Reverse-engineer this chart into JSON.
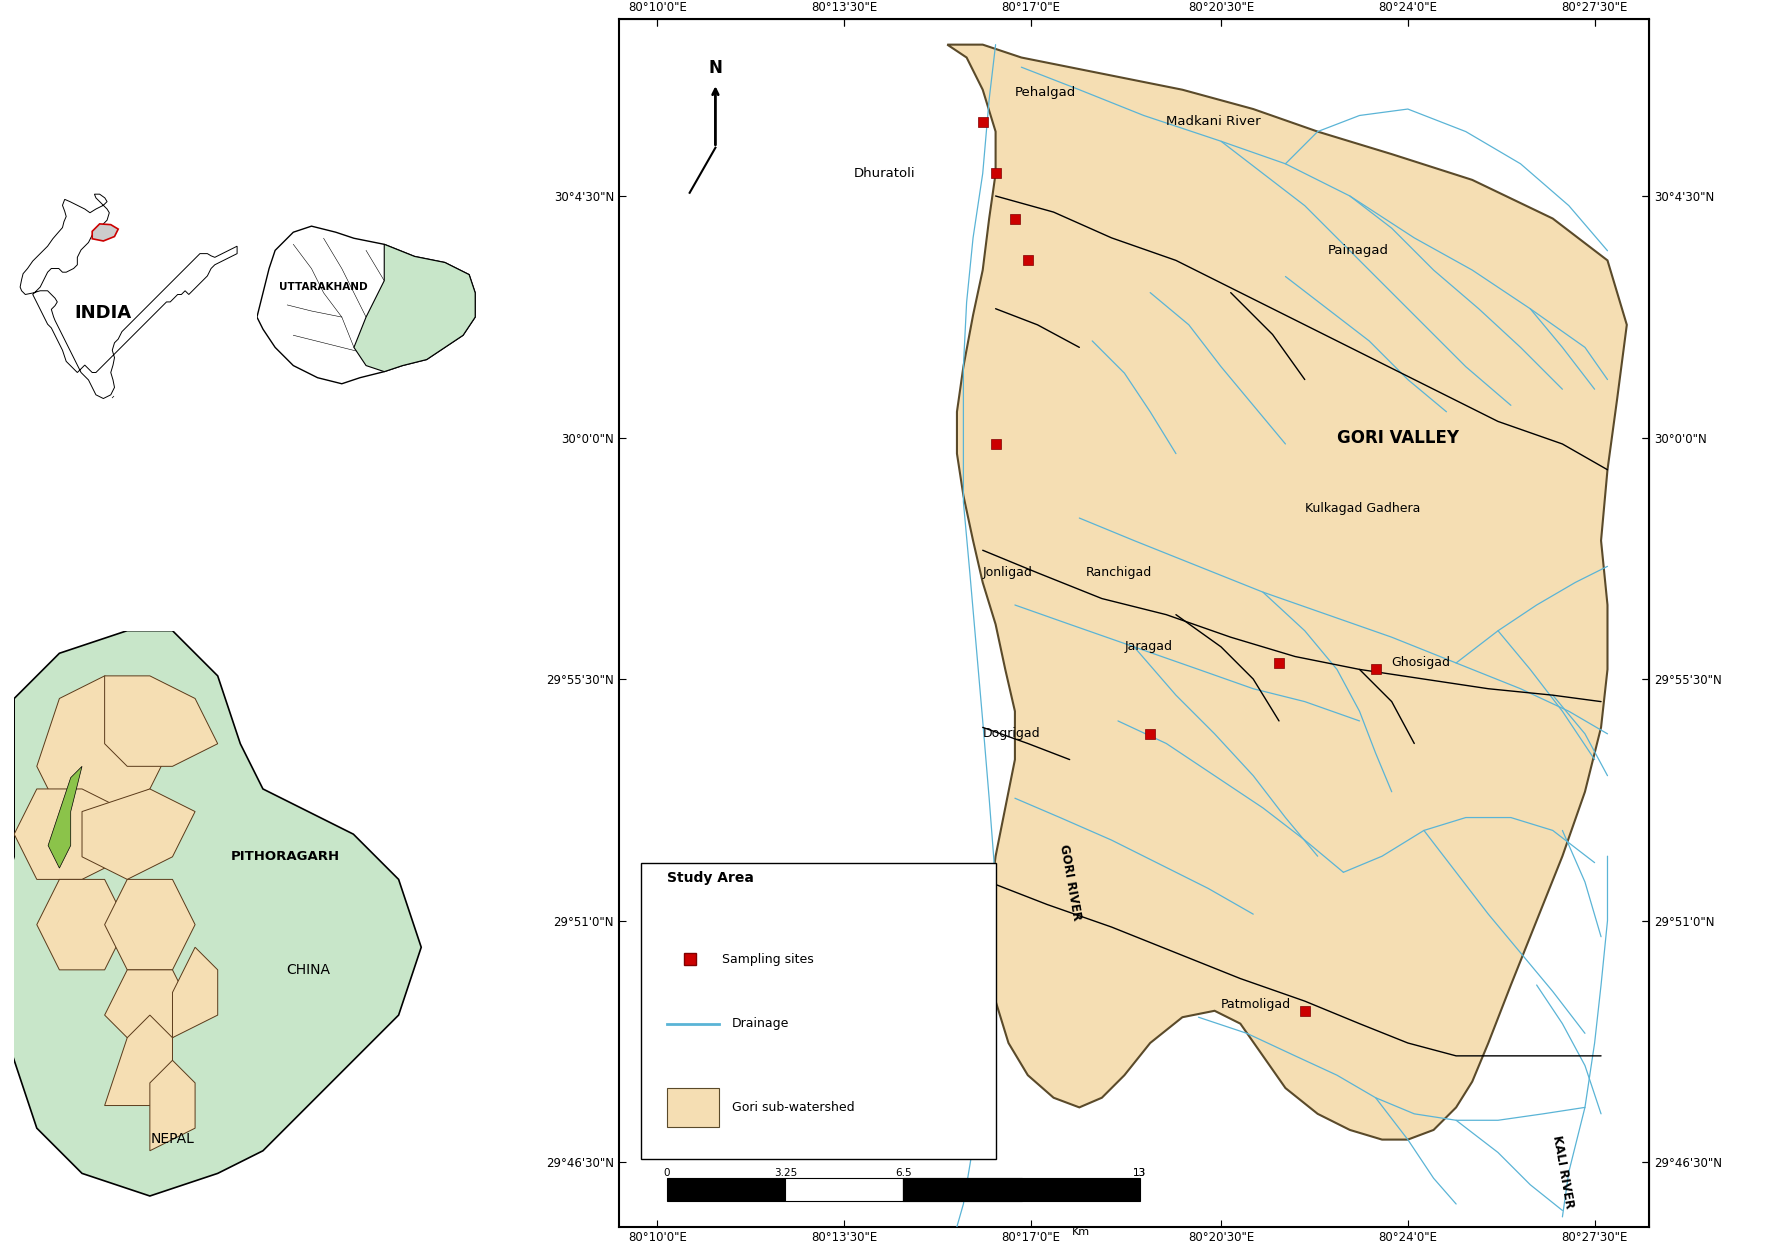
{
  "figure_bg": "#ffffff",
  "watershed_color": "#f5deb3",
  "watershed_edge": "#5a4a2a",
  "river_color": "#5ab4d6",
  "sampling_color": "#cc0000",
  "panel_border": "#666666",
  "lat_ticks": [
    "30°4'30\"N",
    "30°0'0\"N",
    "29°55'30\"N",
    "29°51'0\"N",
    "29°46'30\"N"
  ],
  "lat_vals": [
    30.075,
    30.0,
    29.925,
    29.85,
    29.775
  ],
  "lon_ticks": [
    "80°10'0\"E",
    "80°13'30\"E",
    "80°17'0\"E",
    "80°20'30\"E",
    "80°24'0\"E",
    "80°27'30\"E"
  ],
  "lon_vals": [
    80.167,
    80.225,
    80.283,
    80.342,
    80.4,
    80.458
  ],
  "map_xlim": [
    80.155,
    80.475
  ],
  "map_ylim": [
    29.755,
    30.13
  ]
}
